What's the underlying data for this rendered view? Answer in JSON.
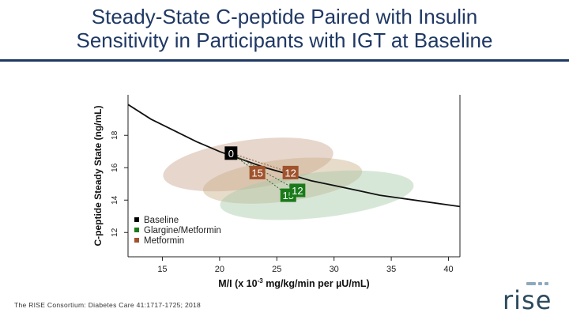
{
  "slide": {
    "title_line1": "Steady-State C-peptide Paired with Insulin",
    "title_line2": "Sensitivity in Participants with IGT at Baseline",
    "citation": "The RISE Consortium: Diabetes Care 41:1717-1725; 2018",
    "logo_text": "rise",
    "colors": {
      "title": "#1f3864",
      "rule": "#1f3864",
      "logo": "#2c4a5e",
      "logo_dot": "#8fa9bc"
    }
  },
  "chart_data": {
    "type": "scatter",
    "xlabel_pre": "M/I (x 10",
    "xlabel_sup": "-3",
    "xlabel_post": " mg/kg/min per µU/mL)",
    "ylabel": "C-peptide Steady State (ng/mL)",
    "xlim": [
      12,
      41
    ],
    "ylim": [
      10.5,
      20.5
    ],
    "x_ticks": [
      15,
      20,
      25,
      30,
      35,
      40
    ],
    "y_ticks": [
      12,
      14,
      16,
      18
    ],
    "curve": [
      {
        "x": 12.0,
        "y": 19.9
      },
      {
        "x": 14.0,
        "y": 19.0
      },
      {
        "x": 16.0,
        "y": 18.3
      },
      {
        "x": 18.0,
        "y": 17.6
      },
      {
        "x": 20.0,
        "y": 17.0
      },
      {
        "x": 22.0,
        "y": 16.5
      },
      {
        "x": 24.0,
        "y": 16.0
      },
      {
        "x": 26.0,
        "y": 15.6
      },
      {
        "x": 28.0,
        "y": 15.2
      },
      {
        "x": 30.0,
        "y": 14.9
      },
      {
        "x": 32.0,
        "y": 14.6
      },
      {
        "x": 34.0,
        "y": 14.3
      },
      {
        "x": 36.0,
        "y": 14.1
      },
      {
        "x": 38.0,
        "y": 13.9
      },
      {
        "x": 40.0,
        "y": 13.7
      },
      {
        "x": 41.0,
        "y": 13.6
      }
    ],
    "ellipses": [
      {
        "group": "Baseline",
        "cx": 22.5,
        "cy": 16.2,
        "rx": 7.5,
        "ry": 1.5,
        "angle": -8,
        "color": "#c9a58e"
      },
      {
        "group": "Metformin",
        "cx": 25.5,
        "cy": 15.2,
        "rx": 7.0,
        "ry": 1.3,
        "angle": -7,
        "color": "#c9b08a"
      },
      {
        "group": "Glargine/Metformin",
        "cx": 28.5,
        "cy": 14.3,
        "rx": 8.5,
        "ry": 1.4,
        "angle": -6,
        "color": "#a6c9a6"
      }
    ],
    "points": [
      {
        "group": "Baseline",
        "label": "0",
        "x": 21.0,
        "y": 16.9,
        "color": "#000000"
      },
      {
        "group": "Metformin",
        "label": "15",
        "x": 23.3,
        "y": 15.7,
        "color": "#a0522d"
      },
      {
        "group": "Metformin",
        "label": "12",
        "x": 26.2,
        "y": 15.7,
        "color": "#a0522d"
      },
      {
        "group": "Glargine/Metformin",
        "label": "15",
        "x": 26.0,
        "y": 14.3,
        "color": "#1a7a1a"
      },
      {
        "group": "Glargine/Metformin",
        "label": "12",
        "x": 26.8,
        "y": 14.6,
        "color": "#1a7a1a"
      }
    ],
    "connectors": [
      {
        "from": [
          21.0,
          16.9
        ],
        "to": [
          23.3,
          15.7
        ],
        "color": "#8a5a3a"
      },
      {
        "from": [
          21.0,
          16.9
        ],
        "to": [
          26.2,
          15.7
        ],
        "color": "#8a5a3a"
      },
      {
        "from": [
          21.0,
          16.9
        ],
        "to": [
          26.0,
          14.3
        ],
        "color": "#3a6a3a"
      },
      {
        "from": [
          21.0,
          16.9
        ],
        "to": [
          26.8,
          14.6
        ],
        "color": "#3a6a3a"
      }
    ],
    "legend": {
      "position": "bottom-left",
      "entries": [
        {
          "name": "Baseline",
          "color": "#000000"
        },
        {
          "name": "Glargine/Metformin",
          "color": "#1a7a1a"
        },
        {
          "name": "Metformin",
          "color": "#a0522d"
        }
      ]
    }
  }
}
